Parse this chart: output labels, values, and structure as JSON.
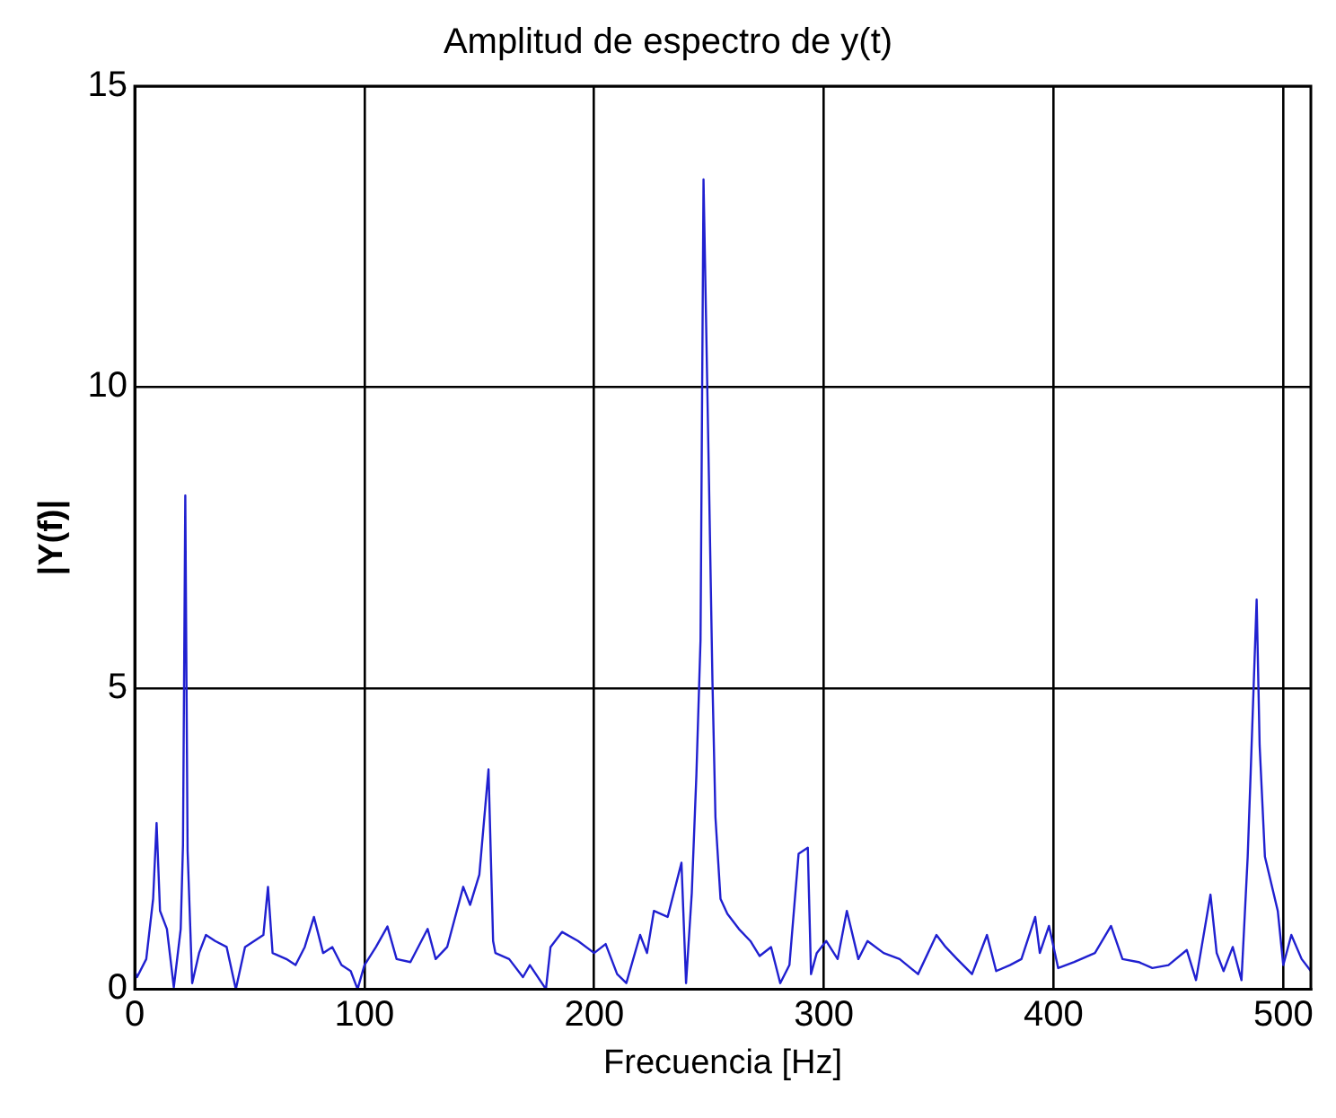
{
  "chart_data": {
    "type": "line",
    "title": "Amplitud de espectro de y(t)",
    "xlabel": "Frecuencia [Hz]",
    "ylabel": "|Y(f)|",
    "x": [
      0,
      1,
      5,
      8,
      9.5,
      11,
      14,
      17,
      20,
      21,
      22,
      23,
      25,
      28,
      31,
      35,
      40,
      44,
      48,
      52,
      56,
      58,
      60,
      66,
      70,
      74,
      78,
      82,
      86,
      90,
      94,
      97,
      100,
      105,
      110,
      114,
      120,
      127.5,
      131,
      136,
      143,
      146,
      150,
      154,
      156,
      157,
      163,
      169,
      172,
      179,
      181,
      186,
      193,
      200,
      205,
      210,
      214,
      220,
      223,
      226,
      232,
      238,
      240,
      242.5,
      244.5,
      246.3,
      247.6,
      250,
      251.5,
      252.8,
      255,
      258,
      263,
      268,
      272,
      277,
      281,
      285,
      289,
      293,
      294.4,
      296.9,
      301,
      306,
      310,
      315,
      319,
      326,
      333,
      341,
      349,
      353,
      358,
      364.5,
      371,
      375,
      381,
      386,
      392,
      394,
      398,
      402,
      409,
      418,
      425,
      430,
      437,
      443,
      450,
      458,
      462,
      468.3,
      471,
      474,
      478,
      481.8,
      484.5,
      485.8,
      488.4,
      489.7,
      492,
      497.6,
      500,
      503.5,
      508,
      512
    ],
    "series": [
      {
        "color": "#2020d0",
        "values": [
          0.3,
          0.2,
          0.5,
          1.5,
          2.76,
          1.3,
          1.0,
          0.03,
          1.0,
          2.4,
          8.2,
          2.3,
          0.1,
          0.6,
          0.9,
          0.8,
          0.7,
          0.0,
          0.7,
          0.8,
          0.9,
          1.7,
          0.6,
          0.5,
          0.4,
          0.7,
          1.2,
          0.6,
          0.7,
          0.4,
          0.3,
          0.0,
          0.4,
          0.7,
          1.04,
          0.5,
          0.45,
          1.0,
          0.5,
          0.7,
          1.7,
          1.4,
          1.9,
          3.65,
          0.8,
          0.6,
          0.5,
          0.2,
          0.4,
          0.0,
          0.7,
          0.95,
          0.8,
          0.6,
          0.75,
          0.25,
          0.1,
          0.9,
          0.6,
          1.3,
          1.2,
          2.1,
          0.1,
          1.6,
          3.56,
          5.8,
          13.45,
          8.4,
          5.1,
          2.85,
          1.5,
          1.25,
          1.0,
          0.8,
          0.55,
          0.7,
          0.1,
          0.4,
          2.25,
          2.35,
          0.25,
          0.6,
          0.8,
          0.5,
          1.3,
          0.5,
          0.8,
          0.6,
          0.5,
          0.25,
          0.9,
          0.7,
          0.5,
          0.25,
          0.9,
          0.3,
          0.4,
          0.5,
          1.2,
          0.6,
          1.05,
          0.35,
          0.45,
          0.6,
          1.05,
          0.5,
          0.45,
          0.35,
          0.4,
          0.65,
          0.15,
          1.57,
          0.6,
          0.3,
          0.7,
          0.15,
          2.2,
          3.6,
          6.47,
          4.05,
          2.2,
          1.3,
          0.4,
          0.9,
          0.5,
          0.3
        ]
      }
    ],
    "xlim": [
      0,
      512
    ],
    "ylim": [
      0,
      15
    ],
    "xticks": [
      0,
      100,
      200,
      300,
      400,
      500
    ],
    "yticks": [
      0,
      5,
      10,
      15
    ],
    "grid": true,
    "legend": false,
    "marker": "none",
    "line_style": "solid"
  }
}
